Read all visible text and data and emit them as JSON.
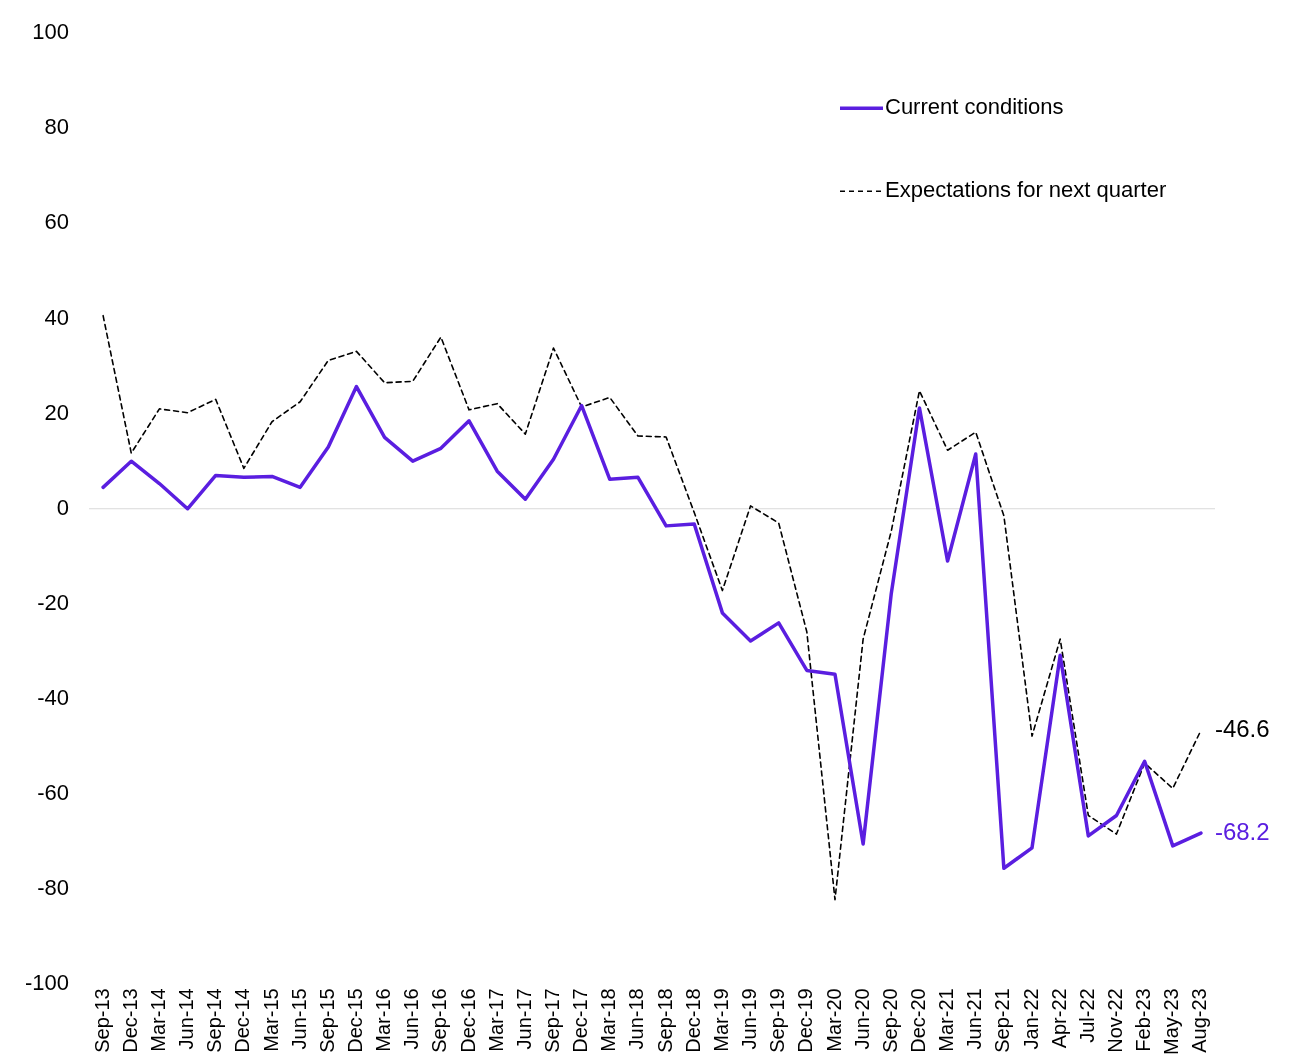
{
  "chart_data": {
    "type": "line",
    "categories": [
      "Sep-13",
      "Dec-13",
      "Mar-14",
      "Jun-14",
      "Sep-14",
      "Dec-14",
      "Mar-15",
      "Jun-15",
      "Sep-15",
      "Dec-15",
      "Mar-16",
      "Jun-16",
      "Sep-16",
      "Dec-16",
      "Mar-17",
      "Jun-17",
      "Sep-17",
      "Dec-17",
      "Mar-18",
      "Jun-18",
      "Sep-18",
      "Dec-18",
      "Mar-19",
      "Jun-19",
      "Sep-19",
      "Dec-19",
      "Mar-20",
      "Jun-20",
      "Sep-20",
      "Dec-20",
      "Mar-21",
      "Jun-21",
      "Sep-21",
      "Jan-22",
      "Apr-22",
      "Jul-22",
      "Nov-22",
      "Feb-23",
      "May-23",
      "Aug-23"
    ],
    "series": [
      {
        "name": "Current conditions",
        "color": "#5a1ee0",
        "line_style": "solid",
        "values": [
          4.5,
          10,
          5.3,
          0,
          7,
          6.6,
          6.8,
          4.5,
          13,
          25.7,
          15,
          10,
          12.7,
          18.5,
          7.9,
          2,
          10.4,
          21.7,
          6.2,
          6.6,
          -3.6,
          -3.2,
          -21.9,
          -27.8,
          -24,
          -34,
          -34.8,
          -70.5,
          -17.8,
          21.2,
          -11,
          11.5,
          -75.6,
          -71.3,
          -30.8,
          -68.8,
          -64.5,
          -53.1,
          -70.9,
          -68.2
        ],
        "value_labels": [
          null,
          null,
          null,
          null,
          null,
          null,
          null,
          null,
          null,
          null,
          null,
          null,
          null,
          null,
          null,
          null,
          null,
          null,
          null,
          null,
          null,
          null,
          null,
          null,
          null,
          null,
          null,
          null,
          null,
          null,
          null,
          null,
          null,
          null,
          null,
          null,
          null,
          null,
          null,
          "-68.2"
        ]
      },
      {
        "name": "Expectations for next quarter",
        "color": "#000000",
        "line_style": "dashed",
        "values": [
          40.6,
          11.7,
          21,
          20.2,
          23,
          8.5,
          18.3,
          22.5,
          31.2,
          33.1,
          26.5,
          26.8,
          36.1,
          20.8,
          22.1,
          15.7,
          33.8,
          21.4,
          23.4,
          15.3,
          15.1,
          -0.8,
          -17.2,
          0.6,
          -3,
          -25.9,
          -82.2,
          -27.4,
          -4.7,
          24.8,
          12.3,
          16.1,
          -1.5,
          -47.8,
          -27.4,
          -64.5,
          -68.4,
          -53.5,
          -58.8,
          -46.6
        ],
        "value_labels": [
          null,
          null,
          null,
          null,
          null,
          null,
          null,
          null,
          null,
          null,
          null,
          null,
          null,
          null,
          null,
          null,
          null,
          null,
          null,
          null,
          null,
          null,
          null,
          null,
          null,
          null,
          null,
          null,
          null,
          null,
          null,
          null,
          null,
          null,
          null,
          null,
          null,
          null,
          null,
          "-46.6"
        ]
      }
    ],
    "ylim": [
      -100,
      100
    ],
    "yticks": [
      -100,
      -80,
      -60,
      -40,
      -20,
      0,
      20,
      40,
      60,
      80,
      100
    ],
    "grid": false,
    "legend": "top right",
    "marker": "none",
    "ref_lines": [
      {
        "axis": "y",
        "value": 0,
        "color": "#d9d9d9"
      }
    ]
  }
}
